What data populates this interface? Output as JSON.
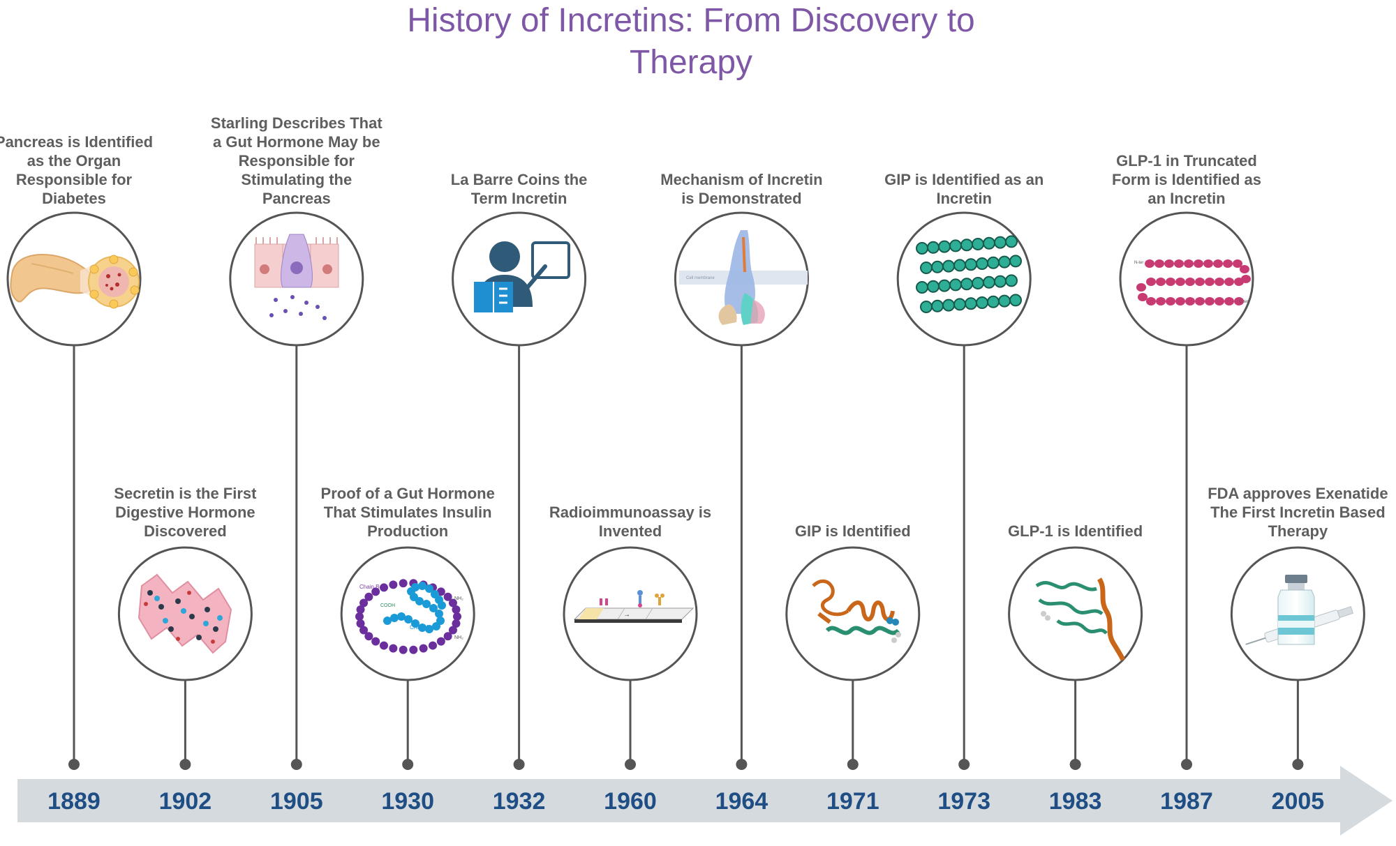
{
  "title": {
    "line1": "History of Incretins: From Discovery to",
    "line2": "Therapy"
  },
  "colors": {
    "title": "#7e57a6",
    "year": "#1f4e84",
    "label": "#5e5e5e",
    "arrow": "#d5dadf",
    "stem": "#555555"
  },
  "events": [
    {
      "year": "1889",
      "row": "top",
      "icon": "pancreas-icon",
      "label": "Pancreas is Identified as the Organ Responsible for Diabetes"
    },
    {
      "year": "1902",
      "row": "bottom",
      "icon": "secretin-icon",
      "label": "Secretin is the First Digestive Hormone Discovered"
    },
    {
      "year": "1905",
      "row": "top",
      "icon": "gut-cells-icon",
      "label": "Starling Describes That a Gut Hormone May be Responsible for Stimulating the Pancreas"
    },
    {
      "year": "1930",
      "row": "bottom",
      "icon": "insulin-chain-icon",
      "label": "Proof of a Gut Hormone That Stimulates Insulin Production"
    },
    {
      "year": "1932",
      "row": "top",
      "icon": "teacher-icon",
      "label": "La Barre Coins the Term Incretin"
    },
    {
      "year": "1960",
      "row": "bottom",
      "icon": "assay-strip-icon",
      "label": "Radioimmunoassay is Invented"
    },
    {
      "year": "1964",
      "row": "top",
      "icon": "receptor-icon",
      "label": "Mechanism of Incretin is Demonstrated"
    },
    {
      "year": "1971",
      "row": "bottom",
      "icon": "gip-protein-icon",
      "label": "GIP is Identified"
    },
    {
      "year": "1973",
      "row": "top",
      "icon": "bead-chain-icon",
      "label": "GIP is Identified as an Incretin"
    },
    {
      "year": "1983",
      "row": "bottom",
      "icon": "glp1-protein-icon",
      "label": "GLP-1 is Identified"
    },
    {
      "year": "1987",
      "row": "top",
      "icon": "peptide-sequence-icon",
      "label": "GLP-1 in Truncated Form is Identified as an Incretin"
    },
    {
      "year": "2005",
      "row": "bottom",
      "icon": "vial-syringe-icon",
      "label": "FDA approves Exenatide The First Incretin Based Therapy"
    }
  ],
  "icon_text": {
    "chain_b": "Chain B",
    "chain_a": "Chain A",
    "cooh": "COOH",
    "nh2": "NH₂",
    "cell_membrane": "Cell membrane",
    "n_ter": "N-ter",
    "c_ter": "C-ter"
  }
}
